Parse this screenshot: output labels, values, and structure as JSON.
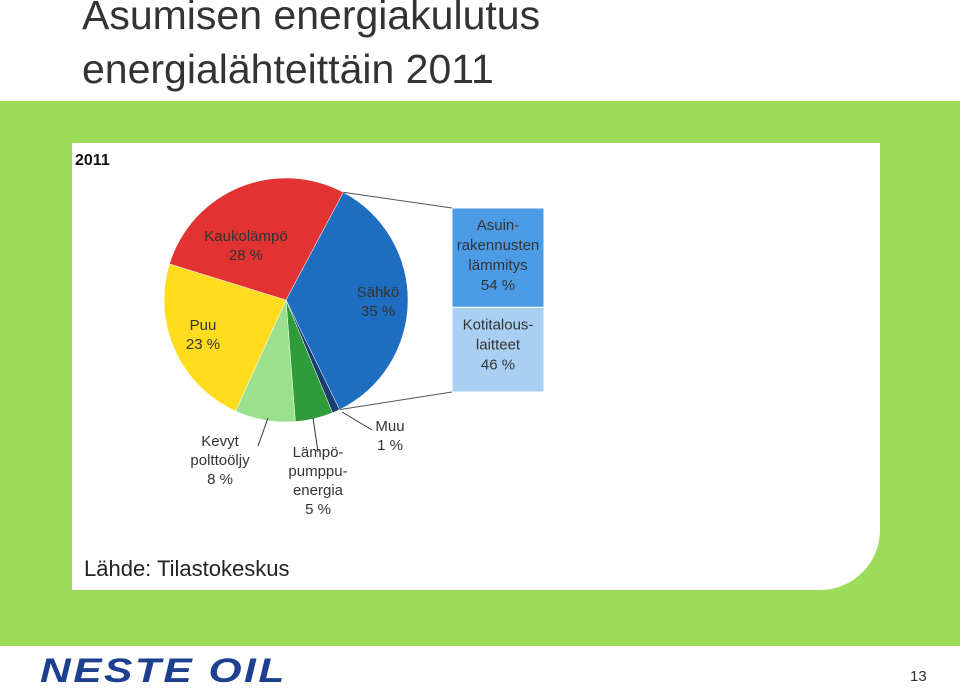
{
  "slide": {
    "title_lines": [
      "Asumisen energiakulutus",
      "energialähteittäin 2011"
    ],
    "source": "Lähde: Tilastokeskus",
    "logo": "NESTE OIL",
    "page_number": "13"
  },
  "chart_data": {
    "type": "pie",
    "title": "2011",
    "categories": [
      "Sähkö",
      "Muu",
      "Lämpö-\npumppu-\nenergia",
      "Kevyt\npolttoöljy",
      "Puu",
      "Kaukolämpö"
    ],
    "values": [
      35,
      1,
      5,
      8,
      23,
      28
    ],
    "value_labels": [
      "35 %",
      "1 %",
      "5 %",
      "8 %",
      "23 %",
      "28 %"
    ],
    "colors": [
      "#1f6dc0",
      "#1b3d6e",
      "#2f9b3a",
      "#9be08c",
      "#ffdc1e",
      "#e23232"
    ],
    "breakdown": {
      "categories": [
        "Asuin-\nrakennusten\nlämmitys",
        "Kotitalous-\nlaitteet"
      ],
      "values": [
        54,
        46
      ],
      "value_labels": [
        "54 %",
        "46 %"
      ],
      "colors": [
        "#4c9be6",
        "#a9d0f3"
      ]
    }
  }
}
